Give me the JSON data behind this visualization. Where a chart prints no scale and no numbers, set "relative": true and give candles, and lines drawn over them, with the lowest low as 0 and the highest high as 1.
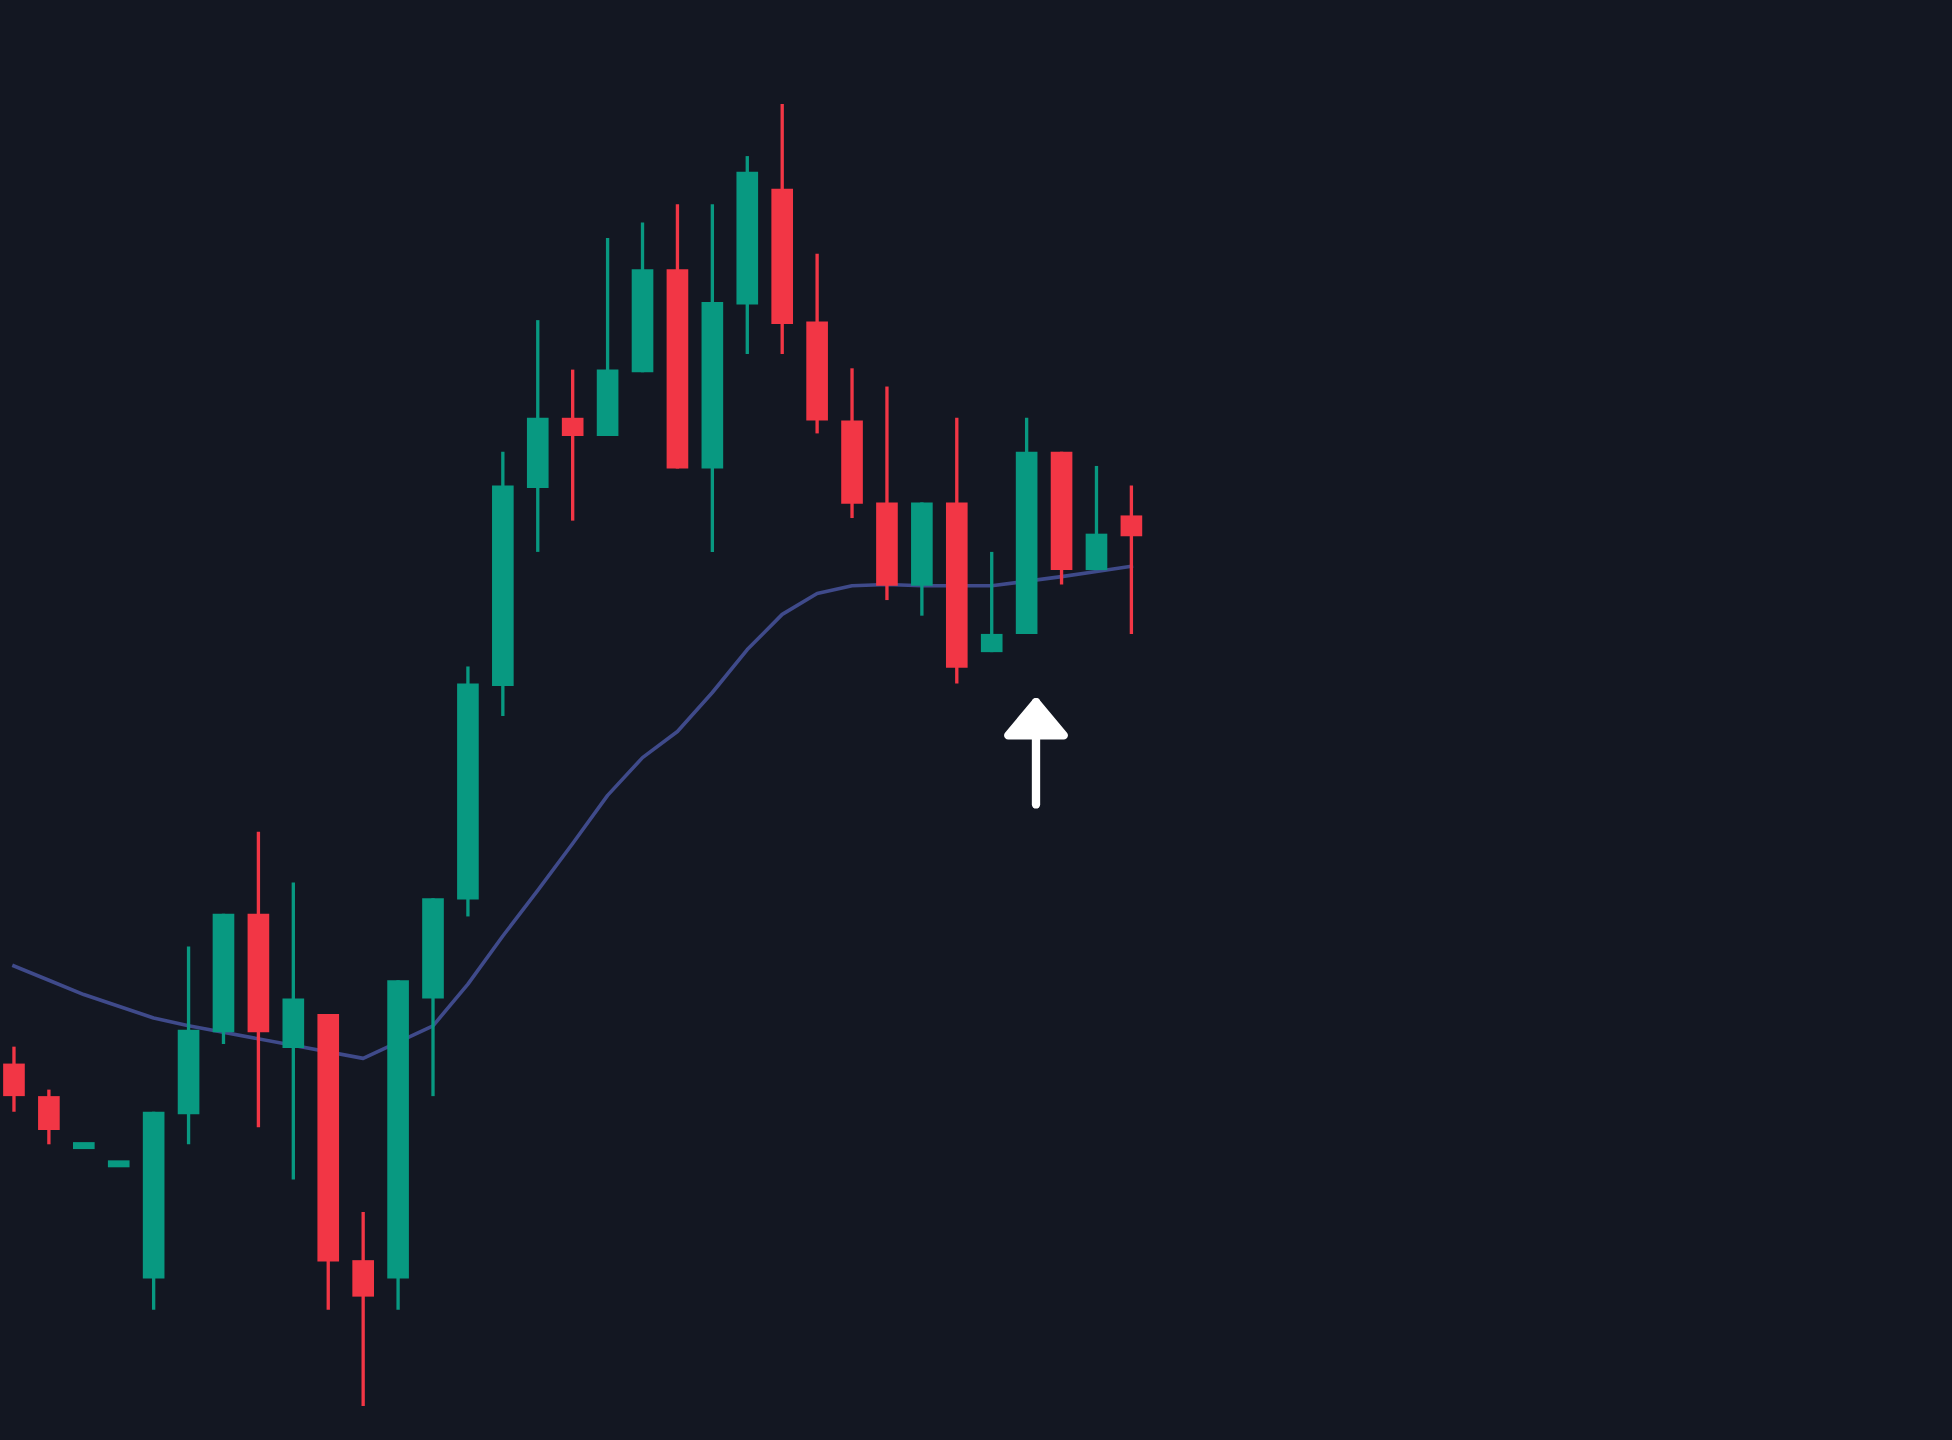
{
  "chart_data": {
    "type": "candlestick",
    "relative": true,
    "categories": [
      null,
      null,
      null,
      null,
      null,
      null,
      null,
      null,
      null,
      null,
      null,
      null,
      null,
      null,
      null,
      null,
      null,
      null,
      null,
      null,
      null,
      null,
      null,
      null,
      null,
      null,
      null,
      null,
      null,
      null,
      null,
      null,
      null,
      null,
      null,
      null,
      null,
      null,
      null,
      null,
      null,
      null,
      null,
      null,
      null,
      null,
      null,
      null,
      null,
      null,
      null,
      null,
      null,
      null,
      null,
      null
    ],
    "ohlc": [
      [
        0.263,
        0.276,
        0.226,
        0.238
      ],
      [
        0.238,
        0.243,
        0.201,
        0.212
      ],
      [
        0.2,
        0.2,
        0.2,
        0.2
      ],
      [
        0.186,
        0.186,
        0.186,
        0.186
      ],
      [
        0.098,
        0.226,
        0.074,
        0.226
      ],
      [
        0.224,
        0.353,
        0.201,
        0.289
      ],
      [
        0.287,
        0.378,
        0.278,
        0.378
      ],
      [
        0.378,
        0.441,
        0.214,
        0.287
      ],
      [
        0.275,
        0.402,
        0.174,
        0.313
      ],
      [
        0.301,
        0.301,
        0.074,
        0.111
      ],
      [
        0.112,
        0.149,
        0,
        0.084
      ],
      [
        0.098,
        0.327,
        0.074,
        0.327
      ],
      [
        0.313,
        0.39,
        0.238,
        0.39
      ],
      [
        0.389,
        0.568,
        0.376,
        0.555
      ],
      [
        0.553,
        0.733,
        0.53,
        0.707
      ],
      [
        0.705,
        0.834,
        0.656,
        0.759
      ],
      [
        0.759,
        0.796,
        0.68,
        0.745
      ],
      [
        0.745,
        0.897,
        0.745,
        0.796
      ],
      [
        0.794,
        0.909,
        0.794,
        0.873
      ],
      [
        0.873,
        0.923,
        0.72,
        0.72
      ],
      [
        0.72,
        0.923,
        0.656,
        0.848
      ],
      [
        0.846,
        0.96,
        0.808,
        0.948
      ],
      [
        0.935,
        1,
        0.808,
        0.831
      ],
      [
        0.833,
        0.885,
        0.747,
        0.757
      ],
      [
        0.757,
        0.797,
        0.682,
        0.693
      ],
      [
        0.694,
        0.783,
        0.619,
        0.63
      ],
      [
        0.63,
        0.694,
        0.607,
        0.694
      ],
      [
        0.694,
        0.759,
        0.555,
        0.567
      ],
      [
        0.579,
        0.656,
        0.579,
        0.593
      ],
      [
        0.593,
        0.759,
        0.593,
        0.733
      ],
      [
        0.733,
        0.733,
        0.631,
        0.642
      ],
      [
        0.642,
        0.722,
        0.642,
        0.67
      ],
      [
        0.684,
        0.707,
        0.593,
        0.668
      ],
      null,
      null,
      null,
      null,
      null,
      null,
      null,
      null,
      null,
      null,
      null,
      null,
      null,
      null,
      null,
      null,
      null,
      null,
      null,
      null,
      null,
      null,
      null
    ],
    "colors": [
      "#f23645",
      "#f23645",
      "#089981",
      "#089981",
      "#089981",
      "#089981",
      "#089981",
      "#f23645",
      "#089981",
      "#f23645",
      "#f23645",
      "#089981",
      "#089981",
      "#089981",
      "#089981",
      "#089981",
      "#f23645",
      "#089981",
      "#089981",
      "#f23645",
      "#089981",
      "#089981",
      "#f23645",
      "#f23645",
      "#f23645",
      "#f23645",
      "#089981",
      "#f23645",
      "#089981",
      "#089981",
      "#f23645",
      "#089981",
      "#f23645",
      null,
      null,
      null,
      null,
      null,
      null,
      null,
      null,
      null,
      null,
      null,
      null,
      null,
      null,
      null,
      null,
      null,
      null,
      null,
      null,
      null,
      null,
      null
    ],
    "series": [
      {
        "type": "line",
        "color": "#3f4a8a",
        "values": [
          0.338,
          0.327,
          0.316,
          0.307,
          0.298,
          0.292,
          null,
          null,
          null,
          null,
          0.267,
          null,
          0.292,
          0.324,
          0.361,
          0.396,
          0.432,
          0.469,
          0.498,
          0.518,
          0.548,
          0.581,
          0.608,
          0.624,
          0.63,
          0.631,
          0.63,
          null,
          0.63,
          null,
          0.637,
          0.641,
          0.645,
          null,
          null,
          null,
          null,
          null,
          null,
          null,
          null,
          null,
          null,
          null,
          null,
          null,
          null,
          null,
          null,
          null,
          null,
          null,
          null,
          null,
          null,
          null
        ]
      }
    ]
  }
}
